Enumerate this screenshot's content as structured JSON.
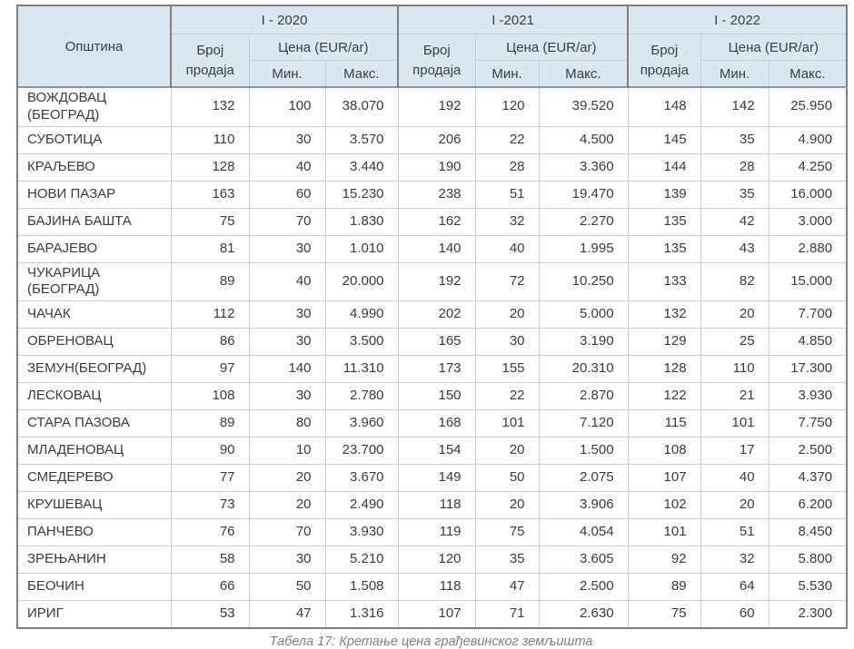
{
  "table": {
    "municipality_header": "Општина",
    "sales_header": "Број продаја",
    "price_header": "Цена (EUR/ar)",
    "min_header": "Мин.",
    "max_header": "Макс.",
    "year_groups": [
      {
        "label": "I - 2020"
      },
      {
        "label": "I -2021"
      },
      {
        "label": "I - 2022"
      }
    ],
    "rows": [
      {
        "municipality": "ВОЖДОВАЦ (БЕОГРАД)",
        "values": [
          "132",
          "100",
          "38.070",
          "192",
          "120",
          "39.520",
          "148",
          "142",
          "25.950"
        ]
      },
      {
        "municipality": "СУБОТИЦА",
        "values": [
          "110",
          "30",
          "3.570",
          "206",
          "22",
          "4.500",
          "145",
          "35",
          "4.900"
        ]
      },
      {
        "municipality": "КРАЉЕВО",
        "values": [
          "128",
          "40",
          "3.440",
          "190",
          "28",
          "3.360",
          "144",
          "28",
          "4.250"
        ]
      },
      {
        "municipality": "НОВИ ПАЗАР",
        "values": [
          "163",
          "60",
          "15.230",
          "238",
          "51",
          "19.470",
          "139",
          "35",
          "16.000"
        ]
      },
      {
        "municipality": "БАЈИНА БАШТА",
        "values": [
          "75",
          "70",
          "1.830",
          "162",
          "32",
          "2.270",
          "135",
          "42",
          "3.000"
        ]
      },
      {
        "municipality": "БАРАЈЕВО",
        "values": [
          "81",
          "30",
          "1.010",
          "140",
          "40",
          "1.995",
          "135",
          "43",
          "2.880"
        ]
      },
      {
        "municipality": "ЧУКАРИЦА (БЕОГРАД)",
        "values": [
          "89",
          "40",
          "20.000",
          "192",
          "72",
          "10.250",
          "133",
          "82",
          "15.000"
        ]
      },
      {
        "municipality": "ЧАЧАК",
        "values": [
          "112",
          "30",
          "4.990",
          "202",
          "20",
          "5.000",
          "132",
          "20",
          "7.700"
        ]
      },
      {
        "municipality": "ОБРЕНОВАЦ",
        "values": [
          "86",
          "30",
          "3.500",
          "165",
          "30",
          "3.190",
          "129",
          "25",
          "4.850"
        ]
      },
      {
        "municipality": "ЗЕМУН(БЕОГРАД)",
        "values": [
          "97",
          "140",
          "11.310",
          "173",
          "155",
          "20.310",
          "128",
          "110",
          "17.300"
        ]
      },
      {
        "municipality": "ЛЕСКОВАЦ",
        "values": [
          "108",
          "30",
          "2.780",
          "150",
          "22",
          "2.870",
          "122",
          "21",
          "3.930"
        ]
      },
      {
        "municipality": "СТАРА ПАЗОВА",
        "values": [
          "89",
          "80",
          "3.960",
          "168",
          "101",
          "7.120",
          "115",
          "101",
          "7.750"
        ]
      },
      {
        "municipality": "МЛАДЕНОВАЦ",
        "values": [
          "90",
          "10",
          "23.700",
          "154",
          "20",
          "1.500",
          "108",
          "17",
          "2.500"
        ]
      },
      {
        "municipality": "СМЕДЕРЕВО",
        "values": [
          "77",
          "20",
          "3.670",
          "149",
          "50",
          "2.075",
          "107",
          "40",
          "4.370"
        ]
      },
      {
        "municipality": "КРУШЕВАЦ",
        "values": [
          "73",
          "20",
          "2.490",
          "118",
          "20",
          "3.906",
          "102",
          "20",
          "6.200"
        ]
      },
      {
        "municipality": "ПАНЧЕВО",
        "values": [
          "76",
          "70",
          "3.930",
          "119",
          "75",
          "4.054",
          "101",
          "51",
          "8.450"
        ]
      },
      {
        "municipality": "ЗРЕЊАНИН",
        "values": [
          "58",
          "30",
          "5.210",
          "120",
          "35",
          "3.605",
          "92",
          "32",
          "5.800"
        ]
      },
      {
        "municipality": "БЕОЧИН",
        "values": [
          "66",
          "50",
          "1.508",
          "118",
          "47",
          "2.500",
          "89",
          "64",
          "5.530"
        ]
      },
      {
        "municipality": "ИРИГ",
        "values": [
          "53",
          "47",
          "1.316",
          "107",
          "71",
          "2.630",
          "75",
          "60",
          "2.300"
        ]
      }
    ]
  },
  "caption": "Табела 17: Кретање цена грађевинског земљишта",
  "colors": {
    "header_background": "#dbe6f1",
    "outer_border": "#7f7f7f",
    "inner_border": "#c3ced8",
    "body_text": "#3a3a3a",
    "caption_text": "#7e7e88"
  }
}
